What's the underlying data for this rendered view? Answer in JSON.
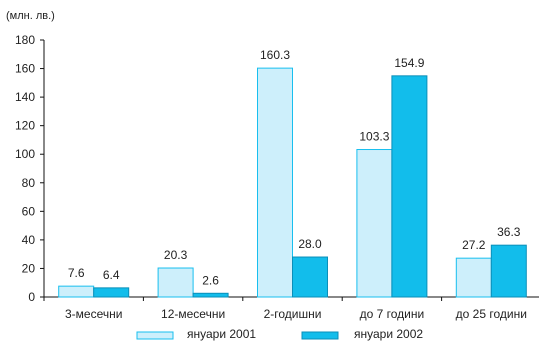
{
  "chart_data": {
    "type": "bar",
    "unit_label": "(млн. лв.)",
    "categories": [
      "3-месечни",
      "12-месечни",
      "2-годишни",
      "до 7 години",
      "до 25 години"
    ],
    "series": [
      {
        "name": "януари 2001",
        "values": [
          7.6,
          20.3,
          160.3,
          103.3,
          27.2
        ],
        "color": "#CDEFFB",
        "stroke": "#18BFEF"
      },
      {
        "name": "януари 2002",
        "values": [
          6.4,
          2.6,
          28.0,
          154.9,
          36.3
        ],
        "color": "#12BDEB",
        "stroke": "#0A8FB9"
      }
    ],
    "value_labels": [
      [
        "7.6",
        "20.3",
        "160.3",
        "103.3",
        "27.2"
      ],
      [
        "6.4",
        "2.6",
        "28.0",
        "154.9",
        "36.3"
      ]
    ],
    "ylim": [
      0,
      180
    ],
    "yticks": [
      0,
      20,
      40,
      60,
      80,
      100,
      120,
      140,
      160,
      180
    ],
    "grid": false,
    "legend_position": "bottom"
  }
}
